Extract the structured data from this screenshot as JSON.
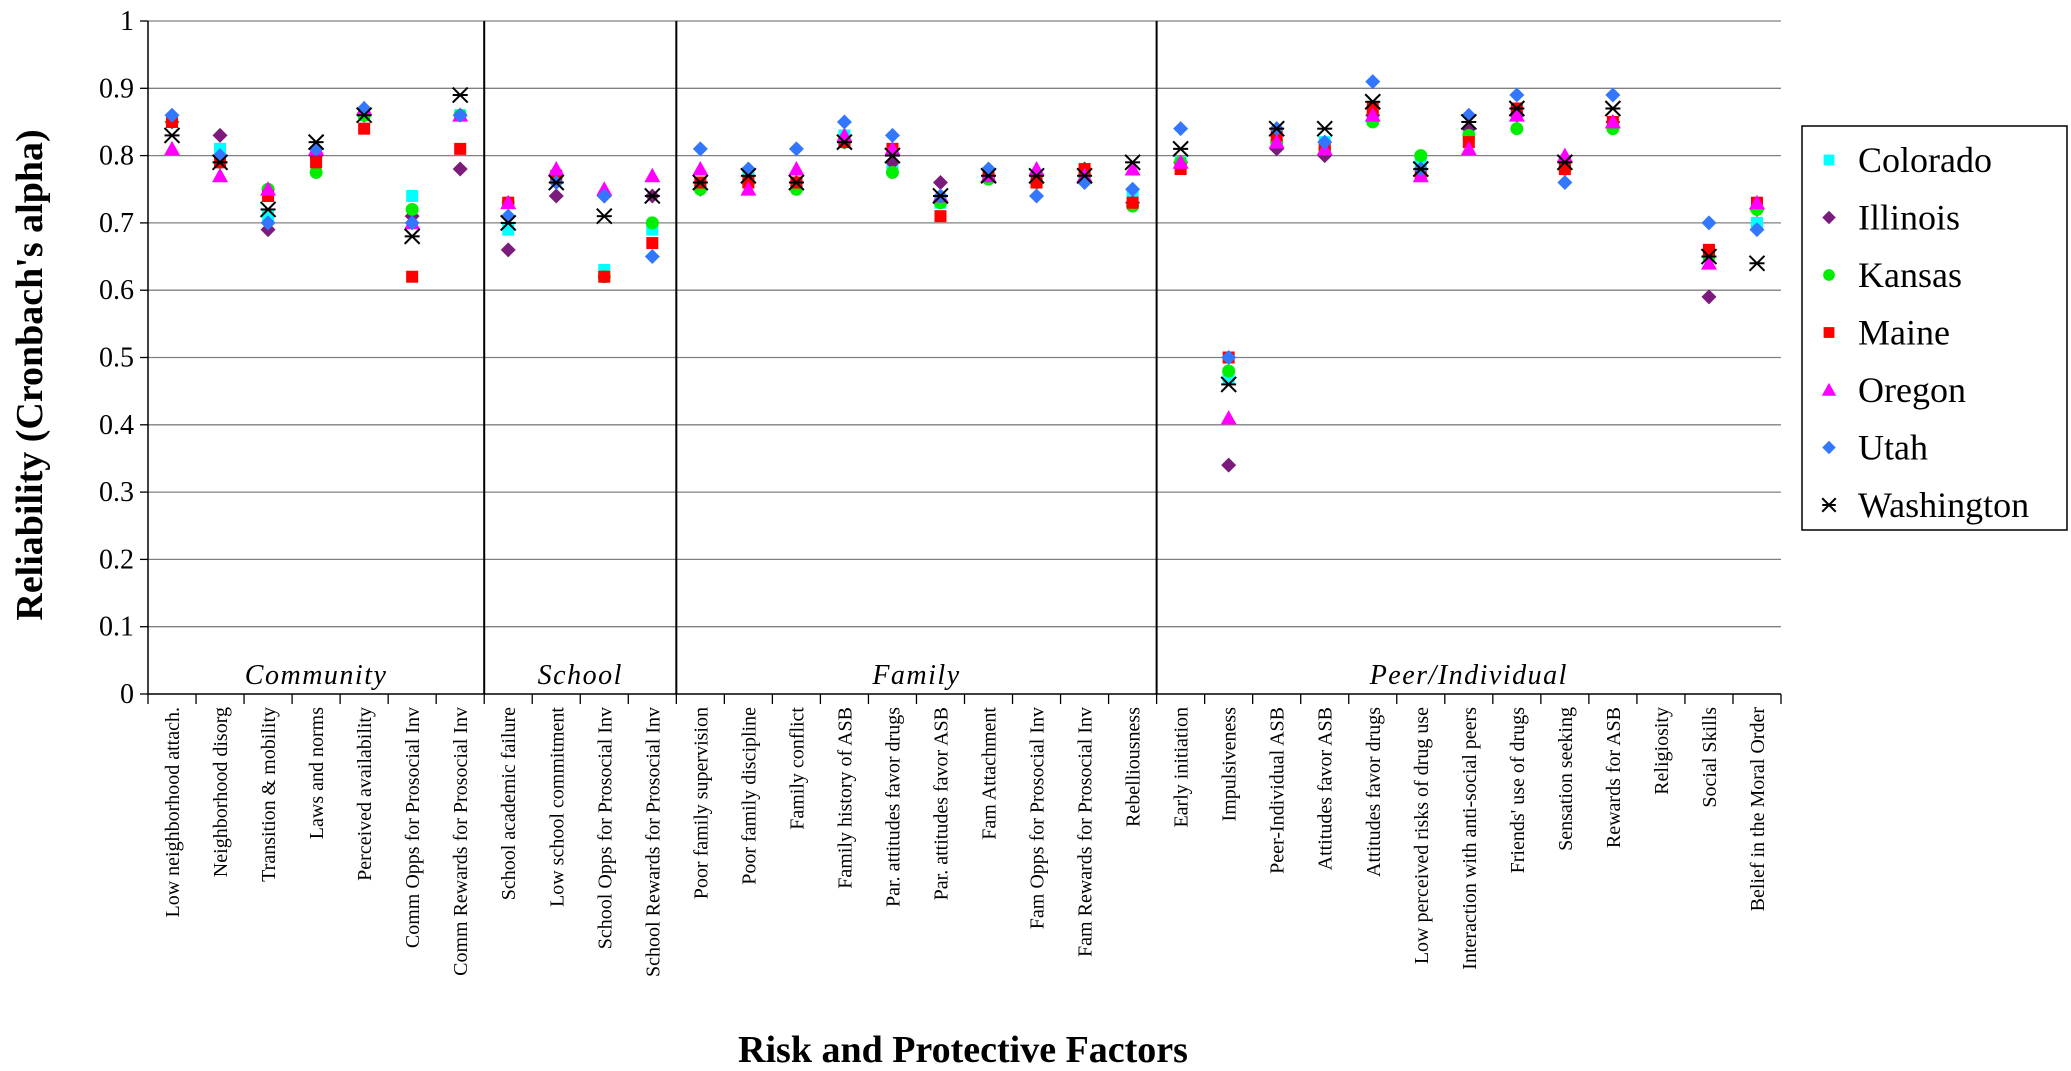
{
  "chart_data": {
    "type": "scatter",
    "title": "",
    "ylabel": "Reliability (Cronbach's alpha)",
    "xlabel": "Risk and Protective Factors",
    "ylim": [
      0,
      1
    ],
    "yticks": [
      "0",
      "0.1",
      "0.2",
      "0.3",
      "0.4",
      "0.5",
      "0.6",
      "0.7",
      "0.8",
      "0.9",
      "1"
    ],
    "grid": "horizontal",
    "legend_position": "right",
    "categories": [
      "Low neighborhood attach.",
      "Neighborhood disorg",
      "Transition & mobility",
      "Laws and norms",
      "Perceived availability",
      "Comm Opps for Prosocial Inv",
      "Comm Rewards for Prosocial Inv",
      "School academic failure",
      "Low school commitment",
      "School Opps for Prosocial Inv",
      "School Rewards for Prosocial Inv",
      "Poor family supervision",
      "Poor family discipline",
      "Family conflict",
      "Family history of ASB",
      "Par. attitudes favor drugs",
      "Par. attitudes favor ASB",
      "Fam Attachment",
      "Fam Opps for Prosocial Inv",
      "Fam Rewards for Prosocial Inv",
      "Rebelliousness",
      "Early initiation",
      "Impulsiveness",
      "Peer-Individual ASB",
      "Attitudes favor ASB",
      "Attitudes favor drugs",
      "Low perceived risks of drug use",
      "Interaction with anti-social peers",
      "Friends' use of drugs",
      "Sensation seeking",
      "Rewards for ASB",
      "Religiosity",
      "Social Skills",
      "Belief in the Moral Order"
    ],
    "sections": [
      {
        "label": "Community",
        "start": 0,
        "end": 6
      },
      {
        "label": "School",
        "start": 7,
        "end": 10
      },
      {
        "label": "Family",
        "start": 11,
        "end": 20
      },
      {
        "label": "Peer/Individual",
        "start": 21,
        "end": 33
      }
    ],
    "series": [
      {
        "name": "Colorado",
        "marker": "square",
        "color": "#00ffff",
        "values": [
          0.85,
          0.81,
          0.71,
          0.8,
          0.86,
          0.74,
          0.86,
          0.69,
          0.77,
          0.63,
          0.69,
          0.76,
          0.77,
          0.76,
          0.83,
          0.78,
          0.73,
          0.77,
          0.76,
          0.77,
          0.74,
          0.79,
          0.47,
          0.82,
          0.82,
          0.86,
          0.79,
          0.83,
          0.87,
          0.79,
          0.85,
          null,
          0.65,
          0.7
        ]
      },
      {
        "name": "Illinois",
        "marker": "diamond",
        "color": "#7b1b7b",
        "values": [
          0.85,
          0.83,
          0.69,
          0.8,
          0.86,
          0.71,
          0.78,
          0.66,
          0.74,
          0.74,
          0.74,
          0.75,
          0.76,
          0.76,
          0.82,
          0.79,
          0.76,
          0.77,
          0.76,
          0.78,
          0.73,
          0.79,
          0.34,
          0.81,
          0.8,
          0.86,
          0.78,
          0.84,
          0.86,
          0.78,
          0.85,
          null,
          0.59,
          0.72
        ]
      },
      {
        "name": "Kansas",
        "marker": "circle",
        "color": "#00ee00",
        "values": [
          0.85,
          0.79,
          0.75,
          0.775,
          0.86,
          0.72,
          0.86,
          0.73,
          0.77,
          0.62,
          0.7,
          0.75,
          0.76,
          0.75,
          0.82,
          0.775,
          0.73,
          0.765,
          0.76,
          0.77,
          0.725,
          0.79,
          0.48,
          0.82,
          0.81,
          0.85,
          0.8,
          0.83,
          0.84,
          0.78,
          0.84,
          null,
          0.65,
          0.72
        ]
      },
      {
        "name": "Maine",
        "marker": "square",
        "color": "#ff0000",
        "values": [
          0.85,
          0.79,
          0.74,
          0.79,
          0.84,
          0.62,
          0.81,
          0.73,
          0.77,
          0.62,
          0.67,
          0.76,
          0.76,
          0.76,
          0.82,
          0.81,
          0.71,
          0.77,
          0.76,
          0.78,
          0.73,
          0.78,
          0.5,
          0.83,
          0.81,
          0.87,
          0.77,
          0.82,
          0.87,
          0.78,
          0.85,
          null,
          0.66,
          0.73
        ]
      },
      {
        "name": "Oregon",
        "marker": "triangle",
        "color": "#ff00ff",
        "values": [
          0.81,
          0.77,
          0.75,
          0.81,
          0.87,
          0.7,
          0.86,
          0.73,
          0.78,
          0.75,
          0.77,
          0.78,
          0.75,
          0.78,
          0.83,
          0.81,
          0.74,
          0.77,
          0.78,
          0.77,
          0.78,
          0.79,
          0.41,
          0.82,
          0.81,
          0.86,
          0.77,
          0.81,
          0.86,
          0.8,
          0.85,
          null,
          0.64,
          0.73
        ]
      },
      {
        "name": "Utah",
        "marker": "diamond",
        "color": "#3377ff",
        "values": [
          0.86,
          0.8,
          0.7,
          0.81,
          0.87,
          0.7,
          0.86,
          0.71,
          0.76,
          0.74,
          0.65,
          0.81,
          0.78,
          0.81,
          0.85,
          0.83,
          0.74,
          0.78,
          0.74,
          0.76,
          0.75,
          0.84,
          0.5,
          0.84,
          0.82,
          0.91,
          0.78,
          0.86,
          0.89,
          0.76,
          0.89,
          null,
          0.7,
          0.69
        ]
      },
      {
        "name": "Washington",
        "marker": "star",
        "color": "#000000",
        "values": [
          0.83,
          0.79,
          0.72,
          0.82,
          0.86,
          0.68,
          0.89,
          0.7,
          0.76,
          0.71,
          0.74,
          0.76,
          0.77,
          0.76,
          0.82,
          0.8,
          0.74,
          0.77,
          0.77,
          0.77,
          0.79,
          0.81,
          0.46,
          0.84,
          0.84,
          0.88,
          0.78,
          0.85,
          0.87,
          0.79,
          0.87,
          null,
          0.65,
          0.64
        ]
      }
    ]
  }
}
